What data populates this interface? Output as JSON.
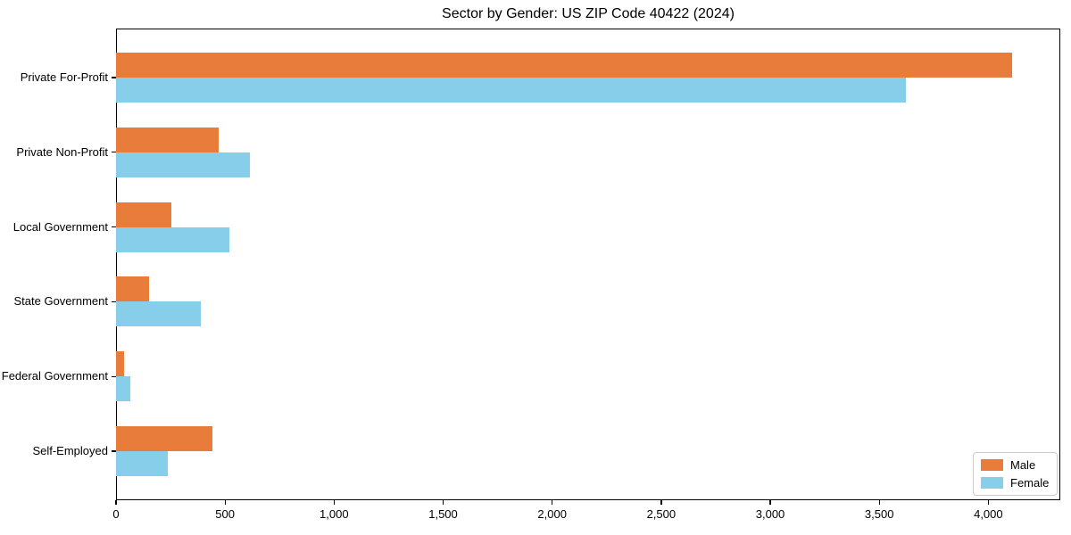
{
  "title": "Sector by Gender: US ZIP Code 40422 (2024)",
  "colors": {
    "male": "#e87c3b",
    "female": "#87ceeb",
    "axis": "#000000",
    "legend_border": "#cccccc",
    "background": "#ffffff"
  },
  "legend": {
    "position": "lower right",
    "items": [
      {
        "label": "Male",
        "color": "#e87c3b"
      },
      {
        "label": "Female",
        "color": "#87ceeb"
      }
    ]
  },
  "chart_data": {
    "type": "bar",
    "orientation": "horizontal",
    "title": "Sector by Gender: US ZIP Code 40422 (2024)",
    "xlabel": "",
    "ylabel": "",
    "categories": [
      "Private For-Profit",
      "Private Non-Profit",
      "Local Government",
      "State Government",
      "Federal Government",
      "Self-Employed"
    ],
    "series": [
      {
        "name": "Male",
        "color": "#e87c3b",
        "values": [
          4110,
          472,
          252,
          150,
          38,
          443
        ]
      },
      {
        "name": "Female",
        "color": "#87ceeb",
        "values": [
          3620,
          613,
          518,
          388,
          64,
          239
        ]
      }
    ],
    "xlim": [
      0,
      4330
    ],
    "xticks": [
      0,
      500,
      1000,
      1500,
      2000,
      2500,
      3000,
      3500,
      4000
    ],
    "xtick_format": "thousands-comma",
    "grid": false,
    "legend_position": "lower right"
  }
}
